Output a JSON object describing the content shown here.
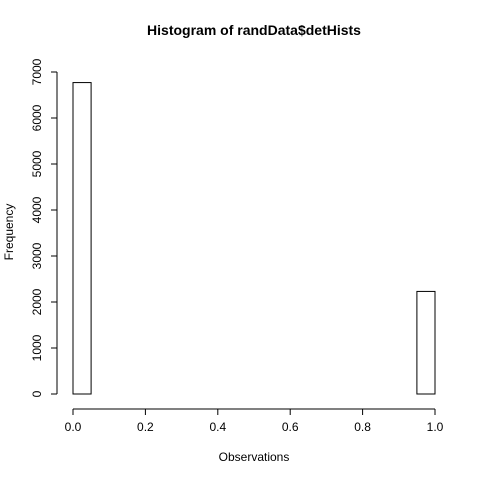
{
  "chart_data": {
    "type": "bar",
    "title": "Histogram of randData$detHists",
    "xlabel": "Observations",
    "ylabel": "Frequency",
    "xlim": [
      0,
      1
    ],
    "ylim": [
      0,
      7000
    ],
    "x_ticks": [
      "0.0",
      "0.2",
      "0.4",
      "0.6",
      "0.8",
      "1.0"
    ],
    "y_ticks": [
      "0",
      "1000",
      "2000",
      "3000",
      "4000",
      "5000",
      "6000",
      "7000"
    ],
    "bin_width": 0.05,
    "bins": [
      {
        "start": 0.0,
        "end": 0.05,
        "count": 6770
      },
      {
        "start": 0.05,
        "end": 0.1,
        "count": 0
      },
      {
        "start": 0.1,
        "end": 0.15,
        "count": 0
      },
      {
        "start": 0.15,
        "end": 0.2,
        "count": 0
      },
      {
        "start": 0.2,
        "end": 0.25,
        "count": 0
      },
      {
        "start": 0.25,
        "end": 0.3,
        "count": 0
      },
      {
        "start": 0.3,
        "end": 0.35,
        "count": 0
      },
      {
        "start": 0.35,
        "end": 0.4,
        "count": 0
      },
      {
        "start": 0.4,
        "end": 0.45,
        "count": 0
      },
      {
        "start": 0.45,
        "end": 0.5,
        "count": 0
      },
      {
        "start": 0.5,
        "end": 0.55,
        "count": 0
      },
      {
        "start": 0.55,
        "end": 0.6,
        "count": 0
      },
      {
        "start": 0.6,
        "end": 0.65,
        "count": 0
      },
      {
        "start": 0.65,
        "end": 0.7,
        "count": 0
      },
      {
        "start": 0.7,
        "end": 0.75,
        "count": 0
      },
      {
        "start": 0.75,
        "end": 0.8,
        "count": 0
      },
      {
        "start": 0.8,
        "end": 0.85,
        "count": 0
      },
      {
        "start": 0.85,
        "end": 0.9,
        "count": 0
      },
      {
        "start": 0.9,
        "end": 0.95,
        "count": 0
      },
      {
        "start": 0.95,
        "end": 1.0,
        "count": 2230
      }
    ],
    "grid": false,
    "bar_fill": "#ffffff",
    "bar_stroke": "#000000"
  }
}
